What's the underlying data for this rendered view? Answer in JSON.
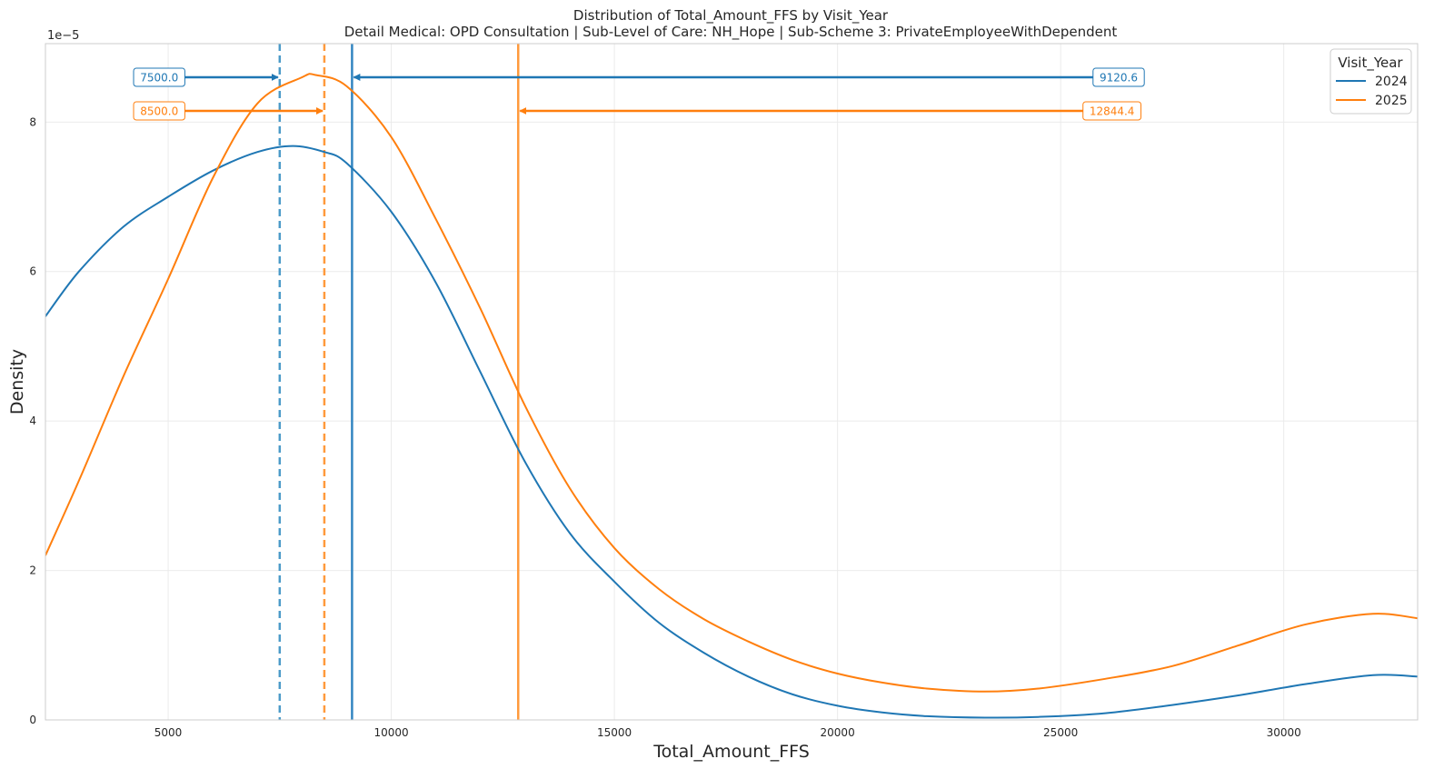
{
  "chart_data": {
    "type": "line",
    "title": "Distribution of Total_Amount_FFS by Visit_Year",
    "subtitle": "Detail Medical: OPD Consultation | Sub-Level of Care: NH_Hope | Sub-Scheme 3: PrivateEmployeeWithDependent",
    "xlabel": "Total_Amount_FFS",
    "ylabel": "Density",
    "y_scale_label": "1e−5",
    "xlim": [
      2250,
      33000
    ],
    "ylim": [
      0,
      9.05
    ],
    "x_ticks": [
      5000,
      10000,
      15000,
      20000,
      25000,
      30000
    ],
    "x_tick_labels": [
      "5000",
      "10000",
      "15000",
      "20000",
      "25000",
      "30000"
    ],
    "y_ticks": [
      0,
      2,
      4,
      6,
      8
    ],
    "y_tick_labels": [
      "0",
      "2",
      "4",
      "6",
      "8"
    ],
    "grid": true,
    "legend": {
      "title": "Visit_Year",
      "placement": "top-right"
    },
    "series": [
      {
        "name": "2024",
        "color": "#1f77b4",
        "x": [
          2250,
          3000,
          4000,
          5000,
          6000,
          7000,
          7800,
          8500,
          9000,
          10000,
          11000,
          12000,
          13000,
          14000,
          15000,
          16000,
          17000,
          18000,
          19000,
          20000,
          21000,
          22000,
          23300,
          24500,
          26000,
          27500,
          29000,
          30500,
          32000,
          33000
        ],
        "y": [
          5.4,
          6.0,
          6.6,
          7.0,
          7.35,
          7.6,
          7.68,
          7.6,
          7.45,
          6.8,
          5.85,
          4.65,
          3.45,
          2.5,
          1.85,
          1.3,
          0.9,
          0.58,
          0.34,
          0.19,
          0.1,
          0.05,
          0.03,
          0.04,
          0.09,
          0.2,
          0.33,
          0.48,
          0.6,
          0.58
        ]
      },
      {
        "name": "2025",
        "color": "#ff7f0e",
        "x": [
          2250,
          3000,
          4000,
          5000,
          6000,
          7000,
          8000,
          8300,
          9000,
          10000,
          11000,
          12000,
          13000,
          14000,
          15000,
          16000,
          17000,
          18000,
          19000,
          20000,
          21000,
          22000,
          23300,
          24500,
          26000,
          27500,
          29000,
          30500,
          32000,
          33000
        ],
        "y": [
          2.2,
          3.2,
          4.6,
          5.9,
          7.25,
          8.25,
          8.6,
          8.63,
          8.48,
          7.8,
          6.7,
          5.5,
          4.2,
          3.1,
          2.3,
          1.75,
          1.35,
          1.05,
          0.8,
          0.62,
          0.5,
          0.42,
          0.38,
          0.42,
          0.55,
          0.72,
          1.0,
          1.28,
          1.42,
          1.36
        ]
      }
    ],
    "reference_lines": [
      {
        "x": 7500.0,
        "style": "dashed",
        "color": "#4c9bc9",
        "series": "2024"
      },
      {
        "x": 8500.0,
        "style": "dashed",
        "color": "#ff9a3c",
        "series": "2025"
      },
      {
        "x": 9120.6,
        "style": "solid",
        "color": "#3385c1",
        "series": "2024"
      },
      {
        "x": 12844.4,
        "style": "solid",
        "color": "#ff9a3c",
        "series": "2025"
      }
    ],
    "annotations": [
      {
        "text": "7500.0",
        "series": "2024",
        "target_x": 7500.0,
        "label_x": 4800,
        "y": 8.6,
        "color": "#1f77b4"
      },
      {
        "text": "9120.6",
        "series": "2024",
        "target_x": 9120.6,
        "label_x": 26300,
        "y": 8.6,
        "color": "#1f77b4"
      },
      {
        "text": "8500.0",
        "series": "2025",
        "target_x": 8500.0,
        "label_x": 4800,
        "y": 8.15,
        "color": "#ff7f0e"
      },
      {
        "text": "12844.4",
        "series": "2025",
        "target_x": 12844.4,
        "label_x": 26150,
        "y": 8.15,
        "color": "#ff7f0e"
      }
    ]
  }
}
